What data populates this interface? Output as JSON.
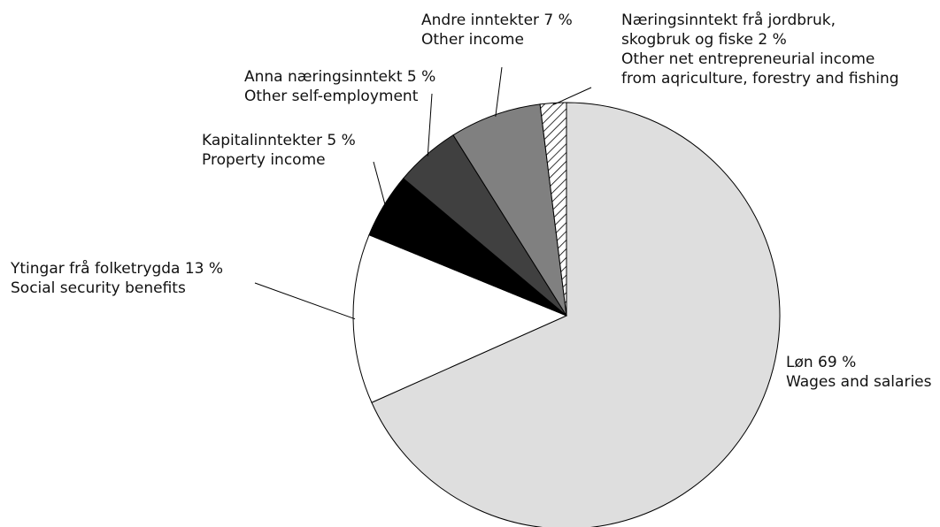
{
  "chart_data": {
    "type": "pie",
    "title": "",
    "start": "12 o'clock, clockwise",
    "legend": "none",
    "slices": [
      {
        "value": 69,
        "label_no": "Løn 69 %",
        "label_en": "Wages and salaries",
        "fill": "#dedede"
      },
      {
        "value": 13,
        "label_no": "Ytingar frå folketrygda 13 %",
        "label_en": "Social security benefits",
        "fill": "#ffffff"
      },
      {
        "value": 5,
        "label_no": "Kapitalinntekter 5 %",
        "label_en": "Property income",
        "fill": "#000000"
      },
      {
        "value": 5,
        "label_no": "Anna næringsinntekt 5 %",
        "label_en": "Other self-employment",
        "fill": "#404040"
      },
      {
        "value": 7,
        "label_no": "Andre inntekter 7 %",
        "label_en": "Other income",
        "fill": "#808080"
      },
      {
        "value": 2,
        "label_no": "Næringsinntekt frå jordbruk, skogbruk og fiske 2 %",
        "label_en": "Other net entrepreneurial income from aqriculture, forestry and fishing",
        "fill": "hatched"
      }
    ],
    "label_lines": [
      [
        "Løn 69 %",
        "Wages and salaries"
      ],
      [
        "Ytingar frå folketrygda 13 %",
        "Social security benefits"
      ],
      [
        "Kapitalinntekter 5 %",
        "Property income"
      ],
      [
        "Anna næringsinntekt 5 %",
        "Other self-employment"
      ],
      [
        "Andre inntekter 7 %",
        "Other income"
      ],
      [
        "Næringsinntekt frå jordbruk,",
        "skogbruk og fiske 2 %",
        "Other net entrepreneurial income",
        "from aqriculture, forestry and fishing"
      ]
    ]
  }
}
